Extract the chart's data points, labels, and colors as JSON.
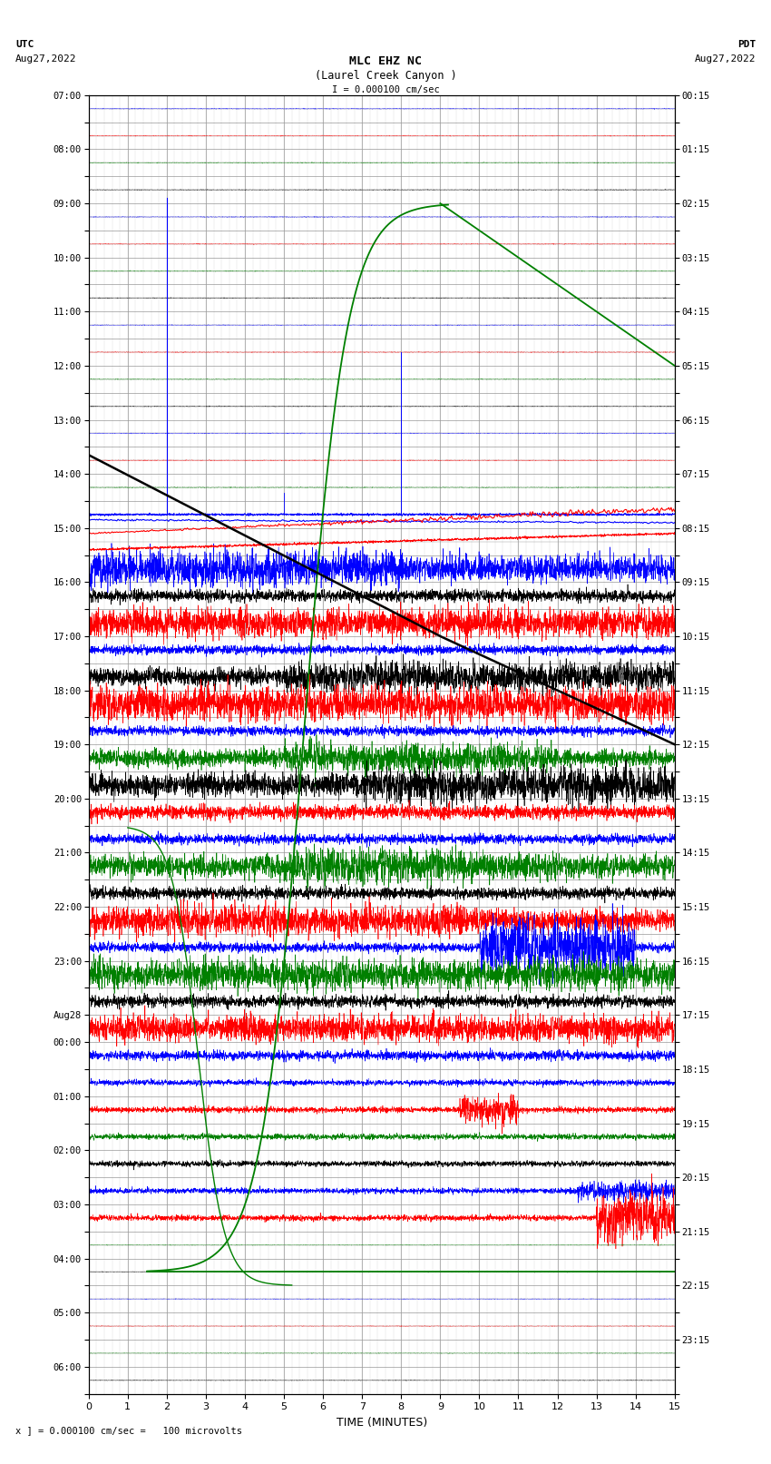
{
  "title_line1": "MLC EHZ NC",
  "title_line2": "(Laurel Creek Canyon )",
  "scale_label": "I = 0.000100 cm/sec",
  "left_label_top": "UTC",
  "left_label_date": "Aug27,2022",
  "right_label_top": "PDT",
  "right_label_date": "Aug27,2022",
  "bottom_label": "TIME (MINUTES)",
  "footer_label": "x ] = 0.000100 cm/sec =   100 microvolts",
  "utc_times": [
    "07:00",
    "",
    "08:00",
    "",
    "09:00",
    "",
    "10:00",
    "",
    "11:00",
    "",
    "12:00",
    "",
    "13:00",
    "",
    "14:00",
    "",
    "15:00",
    "",
    "16:00",
    "",
    "17:00",
    "",
    "18:00",
    "",
    "19:00",
    "",
    "20:00",
    "",
    "21:00",
    "",
    "22:00",
    "",
    "23:00",
    "",
    "Aug28",
    "00:00",
    "",
    "01:00",
    "",
    "02:00",
    "",
    "03:00",
    "",
    "04:00",
    "",
    "05:00",
    "",
    "06:00",
    ""
  ],
  "pdt_times": [
    "00:15",
    "",
    "01:15",
    "",
    "02:15",
    "",
    "03:15",
    "",
    "04:15",
    "",
    "05:15",
    "",
    "06:15",
    "",
    "07:15",
    "",
    "08:15",
    "",
    "09:15",
    "",
    "10:15",
    "",
    "11:15",
    "",
    "12:15",
    "",
    "13:15",
    "",
    "14:15",
    "",
    "15:15",
    "",
    "16:15",
    "",
    "17:15",
    "",
    "18:15",
    "",
    "19:15",
    "",
    "20:15",
    "",
    "21:15",
    "",
    "22:15",
    "",
    "23:15",
    ""
  ],
  "num_rows": 48,
  "x_min": 0,
  "x_max": 15,
  "background_color": "#ffffff",
  "grid_color": "#999999"
}
